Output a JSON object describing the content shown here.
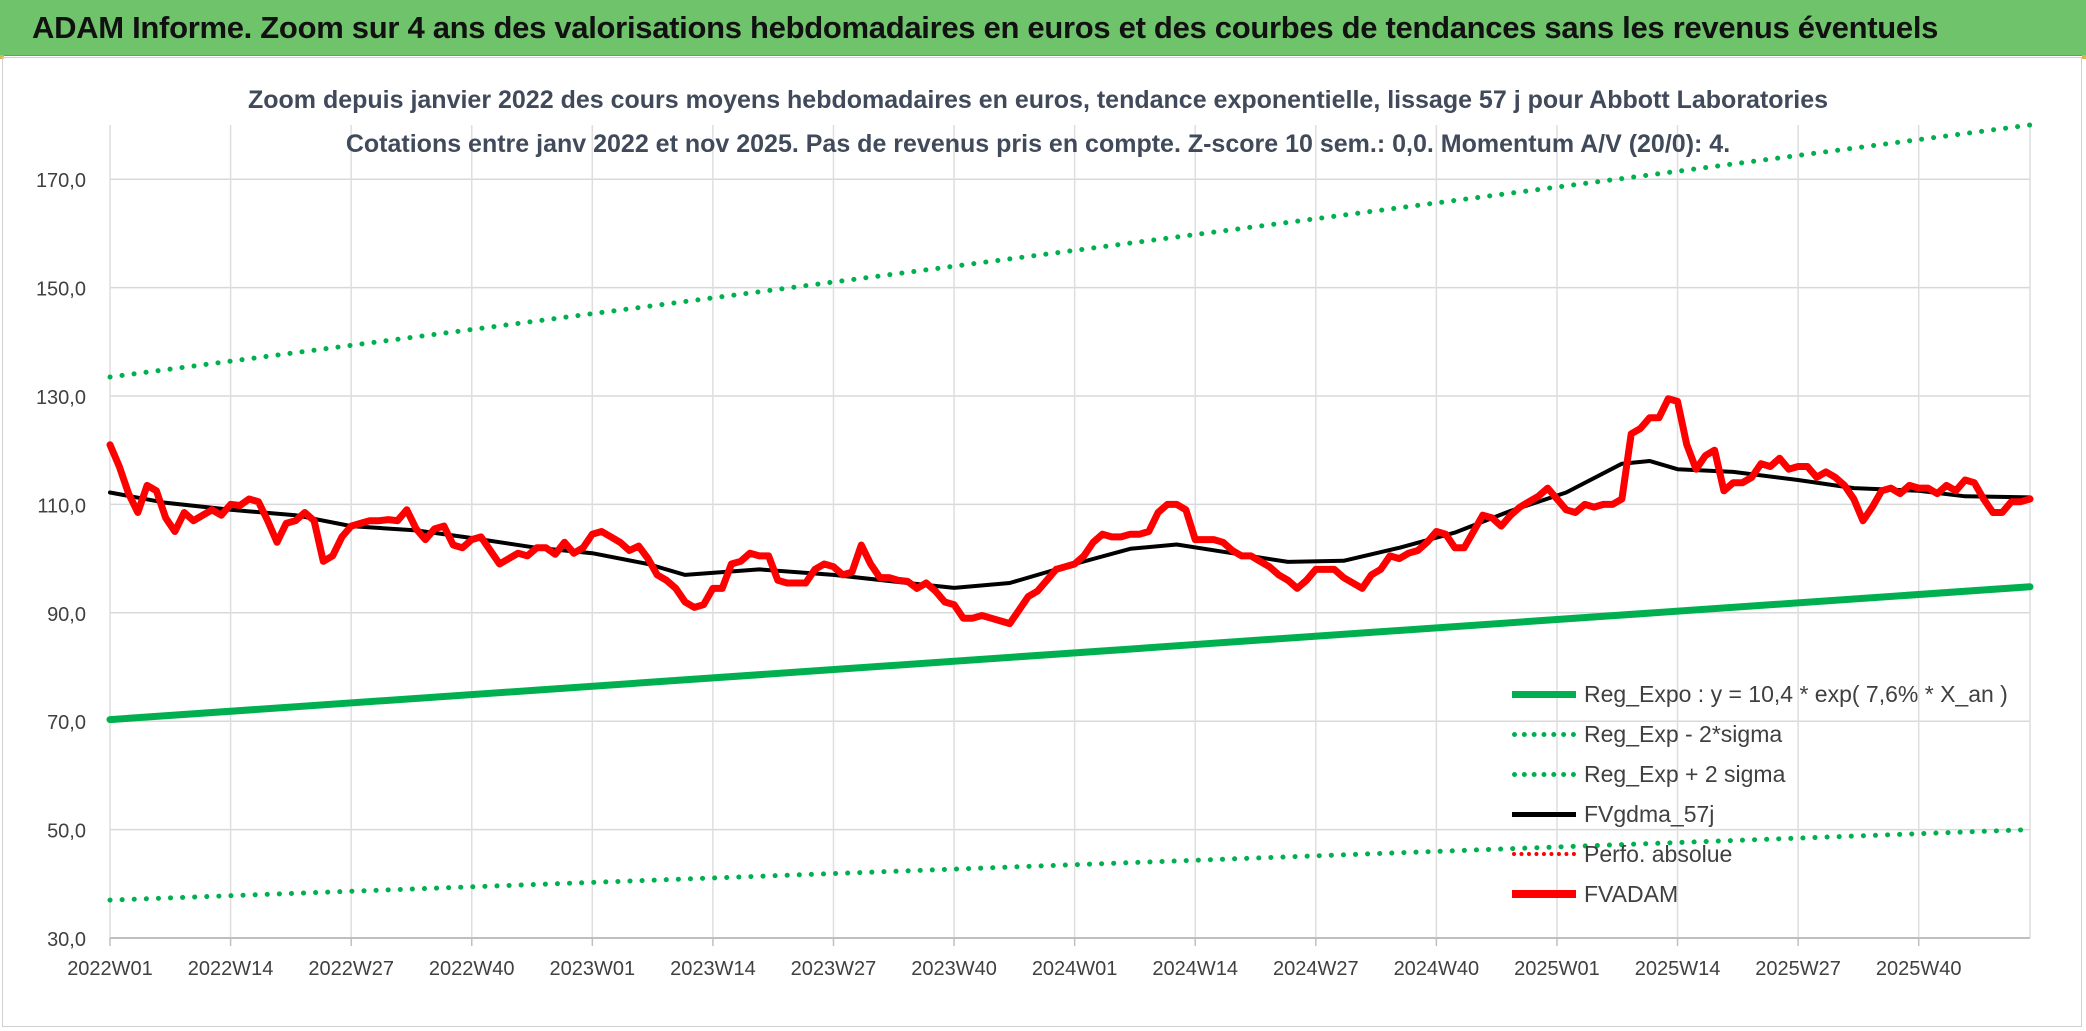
{
  "header": {
    "title": "ADAM Informe. Zoom sur 4 ans des valorisations hebdomadaires en euros et des courbes de tendances sans les revenus éventuels",
    "background": "#6fc36b"
  },
  "chart_data": {
    "type": "line",
    "title": "Zoom depuis janvier 2022 des cours moyens hebdomadaires en euros, tendance exponentielle, lissage 57 j pour Abbott Laboratories",
    "subtitle": "Cotations entre janv 2022 et nov 2025. Pas de revenus pris en compte. Z-score 10 sem.: 0,0. Momentum A/V (20/0): 4.",
    "xlabel": "",
    "ylabel": "",
    "ylim": [
      30,
      180
    ],
    "y_ticks": [
      "30,0",
      "50,0",
      "70,0",
      "90,0",
      "110,0",
      "130,0",
      "150,0",
      "170,0"
    ],
    "y_tick_values": [
      30,
      50,
      70,
      90,
      110,
      130,
      150,
      170
    ],
    "x_tick_labels": [
      "2022W01",
      "2022W14",
      "2022W27",
      "2022W40",
      "2023W01",
      "2023W14",
      "2023W27",
      "2023W40",
      "2024W01",
      "2024W14",
      "2024W27",
      "2024W40",
      "2025W01",
      "2025W14",
      "2025W27",
      "2025W40"
    ],
    "x_tick_index": [
      0,
      13,
      26,
      39,
      52,
      65,
      78,
      91,
      104,
      117,
      130,
      143,
      156,
      169,
      182,
      195
    ],
    "n_weeks": 208,
    "grid": true,
    "legend_position": "bottom-right",
    "series": [
      {
        "name": "Reg_Expo : y = 10,4 * exp( 7,6% *  X_an )",
        "style": "solid",
        "color": "#00b050",
        "width": 7,
        "points": [
          [
            0,
            70.3
          ],
          [
            207,
            94.8
          ]
        ]
      },
      {
        "name": "Reg_Exp - 2*sigma",
        "style": "dotted",
        "color": "#00b050",
        "width": 5,
        "points": [
          [
            0,
            37.0
          ],
          [
            207,
            50.0
          ]
        ]
      },
      {
        "name": "Reg_Exp + 2 sigma",
        "style": "dotted",
        "color": "#00b050",
        "width": 5,
        "points": [
          [
            0,
            133.5
          ],
          [
            207,
            180.0
          ]
        ]
      },
      {
        "name": "FVgdma_57j",
        "style": "solid",
        "color": "#000000",
        "width": 4,
        "points": [
          [
            0,
            112.2
          ],
          [
            6,
            110.3
          ],
          [
            13,
            109.0
          ],
          [
            20,
            108.0
          ],
          [
            26,
            106.0
          ],
          [
            33,
            105.2
          ],
          [
            39,
            103.8
          ],
          [
            46,
            102.0
          ],
          [
            52,
            101.0
          ],
          [
            58,
            99.0
          ],
          [
            62,
            97.0
          ],
          [
            70,
            98.0
          ],
          [
            78,
            97.0
          ],
          [
            86,
            95.5
          ],
          [
            91,
            94.6
          ],
          [
            97,
            95.5
          ],
          [
            104,
            99.0
          ],
          [
            110,
            101.8
          ],
          [
            115,
            102.6
          ],
          [
            121,
            101.0
          ],
          [
            127,
            99.4
          ],
          [
            133,
            99.6
          ],
          [
            139,
            102.0
          ],
          [
            145,
            104.8
          ],
          [
            151,
            108.8
          ],
          [
            157,
            112.2
          ],
          [
            163,
            117.5
          ],
          [
            166,
            118.0
          ],
          [
            169,
            116.5
          ],
          [
            175,
            116.0
          ],
          [
            182,
            114.5
          ],
          [
            188,
            113.0
          ],
          [
            195,
            112.5
          ],
          [
            200,
            111.5
          ],
          [
            207,
            111.3
          ]
        ]
      },
      {
        "name": "Perfo. absolue",
        "style": "dotted",
        "color": "#ff0000",
        "width": 3,
        "points": []
      },
      {
        "name": "FVADAM",
        "style": "solid",
        "color": "#ff0000",
        "width": 7,
        "points": [
          [
            0,
            121.0
          ],
          [
            1,
            117.0
          ],
          [
            2,
            112.0
          ],
          [
            3,
            108.5
          ],
          [
            4,
            113.5
          ],
          [
            5,
            112.5
          ],
          [
            6,
            107.5
          ],
          [
            7,
            105.0
          ],
          [
            8,
            108.5
          ],
          [
            9,
            107.0
          ],
          [
            10,
            108.0
          ],
          [
            11,
            109.0
          ],
          [
            12,
            108.0
          ],
          [
            13,
            110.0
          ],
          [
            14,
            109.8
          ],
          [
            15,
            111.0
          ],
          [
            16,
            110.5
          ],
          [
            17,
            107.0
          ],
          [
            18,
            103.0
          ],
          [
            19,
            106.5
          ],
          [
            20,
            107.0
          ],
          [
            21,
            108.5
          ],
          [
            22,
            107.0
          ],
          [
            23,
            99.5
          ],
          [
            24,
            100.5
          ],
          [
            25,
            104.0
          ],
          [
            26,
            106.0
          ],
          [
            27,
            106.5
          ],
          [
            28,
            107.0
          ],
          [
            29,
            107.0
          ],
          [
            30,
            107.2
          ],
          [
            31,
            107.0
          ],
          [
            32,
            109.0
          ],
          [
            33,
            105.5
          ],
          [
            34,
            103.5
          ],
          [
            35,
            105.5
          ],
          [
            36,
            106.0
          ],
          [
            37,
            102.5
          ],
          [
            38,
            102.0
          ],
          [
            39,
            103.5
          ],
          [
            40,
            104.0
          ],
          [
            41,
            101.5
          ],
          [
            42,
            99.0
          ],
          [
            43,
            100.0
          ],
          [
            44,
            101.0
          ],
          [
            45,
            100.5
          ],
          [
            46,
            102.0
          ],
          [
            47,
            102.0
          ],
          [
            48,
            100.8
          ],
          [
            49,
            103.0
          ],
          [
            50,
            101.0
          ],
          [
            51,
            102.0
          ],
          [
            52,
            104.5
          ],
          [
            53,
            105.0
          ],
          [
            54,
            104.0
          ],
          [
            55,
            103.0
          ],
          [
            56,
            101.5
          ],
          [
            57,
            102.3
          ],
          [
            58,
            100.0
          ],
          [
            59,
            97.0
          ],
          [
            60,
            96.0
          ],
          [
            61,
            94.5
          ],
          [
            62,
            92.0
          ],
          [
            63,
            91.0
          ],
          [
            64,
            91.5
          ],
          [
            65,
            94.5
          ],
          [
            66,
            94.5
          ],
          [
            67,
            99.0
          ],
          [
            68,
            99.5
          ],
          [
            69,
            101.0
          ],
          [
            70,
            100.5
          ],
          [
            71,
            100.5
          ],
          [
            72,
            96.0
          ],
          [
            73,
            95.5
          ],
          [
            74,
            95.5
          ],
          [
            75,
            95.5
          ],
          [
            76,
            98.0
          ],
          [
            77,
            99.0
          ],
          [
            78,
            98.5
          ],
          [
            79,
            97.0
          ],
          [
            80,
            97.5
          ],
          [
            81,
            102.5
          ],
          [
            82,
            99.0
          ],
          [
            83,
            96.5
          ],
          [
            84,
            96.5
          ],
          [
            85,
            96.0
          ],
          [
            86,
            95.8
          ],
          [
            87,
            94.5
          ],
          [
            88,
            95.5
          ],
          [
            89,
            94.0
          ],
          [
            90,
            92.0
          ],
          [
            91,
            91.5
          ],
          [
            92,
            89.0
          ],
          [
            93,
            89.0
          ],
          [
            94,
            89.5
          ],
          [
            95,
            89.0
          ],
          [
            96,
            88.5
          ],
          [
            97,
            88.0
          ],
          [
            98,
            90.5
          ],
          [
            99,
            93.0
          ],
          [
            100,
            94.0
          ],
          [
            101,
            96.0
          ],
          [
            102,
            98.0
          ],
          [
            103,
            98.5
          ],
          [
            104,
            99.0
          ],
          [
            105,
            100.5
          ],
          [
            106,
            103.0
          ],
          [
            107,
            104.5
          ],
          [
            108,
            104.0
          ],
          [
            109,
            104.0
          ],
          [
            110,
            104.5
          ],
          [
            111,
            104.5
          ],
          [
            112,
            105.0
          ],
          [
            113,
            108.5
          ],
          [
            114,
            110.0
          ],
          [
            115,
            110.0
          ],
          [
            116,
            109.0
          ],
          [
            117,
            103.5
          ],
          [
            118,
            103.5
          ],
          [
            119,
            103.5
          ],
          [
            120,
            103.0
          ],
          [
            121,
            101.5
          ],
          [
            122,
            100.5
          ],
          [
            123,
            100.5
          ],
          [
            124,
            99.5
          ],
          [
            125,
            98.5
          ],
          [
            126,
            97.0
          ],
          [
            127,
            96.0
          ],
          [
            128,
            94.5
          ],
          [
            129,
            96.0
          ],
          [
            130,
            98.0
          ],
          [
            131,
            98.0
          ],
          [
            132,
            98.0
          ],
          [
            133,
            96.5
          ],
          [
            134,
            95.5
          ],
          [
            135,
            94.5
          ],
          [
            136,
            97.0
          ],
          [
            137,
            98.0
          ],
          [
            138,
            100.5
          ],
          [
            139,
            100.0
          ],
          [
            140,
            101.0
          ],
          [
            141,
            101.5
          ],
          [
            142,
            103.0
          ],
          [
            143,
            105.0
          ],
          [
            144,
            104.5
          ],
          [
            145,
            102.0
          ],
          [
            146,
            102.0
          ],
          [
            147,
            105.0
          ],
          [
            148,
            108.0
          ],
          [
            149,
            107.5
          ],
          [
            150,
            106.0
          ],
          [
            151,
            108.0
          ],
          [
            152,
            109.5
          ],
          [
            153,
            110.5
          ],
          [
            154,
            111.5
          ],
          [
            155,
            113.0
          ],
          [
            156,
            111.0
          ],
          [
            157,
            109.0
          ],
          [
            158,
            108.5
          ],
          [
            159,
            110.0
          ],
          [
            160,
            109.5
          ],
          [
            161,
            110.0
          ],
          [
            162,
            110.0
          ],
          [
            163,
            111.0
          ],
          [
            164,
            123.0
          ],
          [
            165,
            124.0
          ],
          [
            166,
            126.0
          ],
          [
            167,
            126.0
          ],
          [
            168,
            129.5
          ],
          [
            169,
            129.0
          ],
          [
            170,
            121.0
          ],
          [
            171,
            116.5
          ],
          [
            172,
            119.0
          ],
          [
            173,
            120.0
          ],
          [
            174,
            112.5
          ],
          [
            175,
            114.0
          ],
          [
            176,
            114.0
          ],
          [
            177,
            115.0
          ],
          [
            178,
            117.5
          ],
          [
            179,
            117.0
          ],
          [
            180,
            118.5
          ],
          [
            181,
            116.5
          ],
          [
            182,
            117.0
          ],
          [
            183,
            117.0
          ],
          [
            184,
            115.0
          ],
          [
            185,
            116.0
          ],
          [
            186,
            115.0
          ],
          [
            187,
            113.5
          ],
          [
            188,
            111.0
          ],
          [
            189,
            107.0
          ],
          [
            190,
            109.5
          ],
          [
            191,
            112.5
          ],
          [
            192,
            113.0
          ],
          [
            193,
            112.0
          ],
          [
            194,
            113.5
          ],
          [
            195,
            113.0
          ],
          [
            196,
            113.0
          ],
          [
            197,
            112.0
          ],
          [
            198,
            113.5
          ],
          [
            199,
            112.5
          ],
          [
            200,
            114.5
          ],
          [
            201,
            114.0
          ],
          [
            202,
            111.0
          ],
          [
            203,
            108.5
          ],
          [
            204,
            108.5
          ],
          [
            205,
            110.5
          ],
          [
            206,
            110.5
          ],
          [
            207,
            111.0
          ]
        ]
      }
    ]
  },
  "legend": {
    "items": [
      {
        "label": "Reg_Expo : y = 10,4 * exp( 7,6% *  X_an )",
        "icon": "solid-green-line"
      },
      {
        "label": "Reg_Exp - 2*sigma",
        "icon": "dotted-green-line"
      },
      {
        "label": "Reg_Exp + 2 sigma",
        "icon": "dotted-green-line"
      },
      {
        "label": "FVgdma_57j",
        "icon": "solid-black-line"
      },
      {
        "label": "Perfo. absolue",
        "icon": "dotted-red-line"
      },
      {
        "label": "FVADAM",
        "icon": "solid-red-line"
      }
    ]
  }
}
